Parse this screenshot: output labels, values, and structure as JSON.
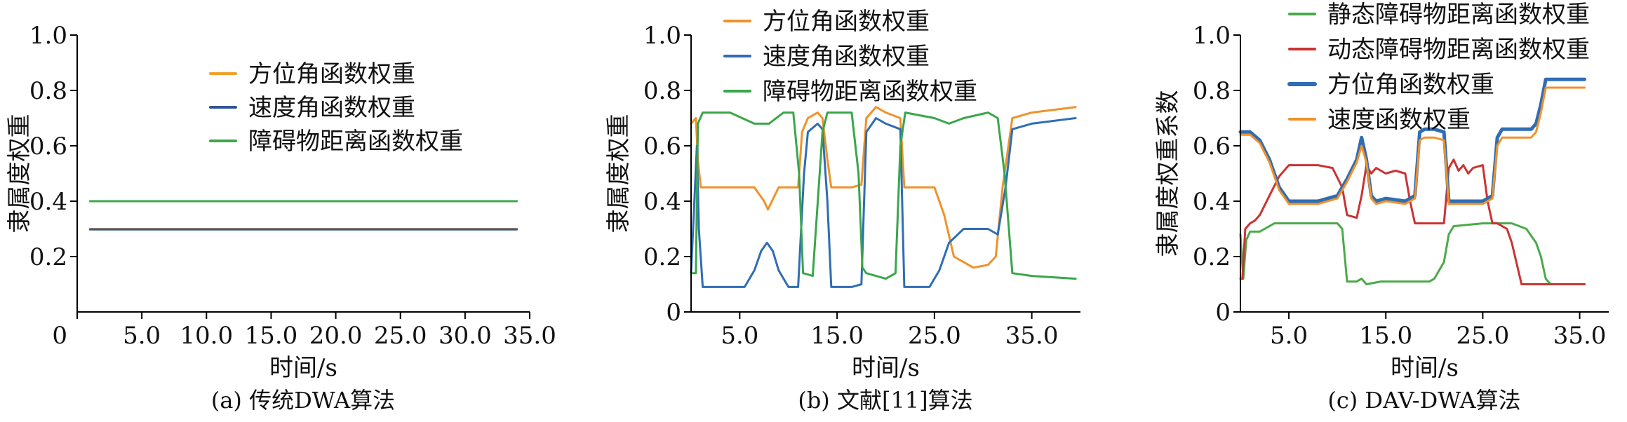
{
  "chart_data": [
    {
      "type": "line",
      "caption": "(a) 传统DWA算法",
      "xlabel": "时间/s",
      "ylabel": "隶属度权重",
      "xlim": [
        0,
        35.0
      ],
      "ylim": [
        0,
        1.0
      ],
      "xticks": [
        0,
        5.0,
        10.0,
        15.0,
        20.0,
        25.0,
        30.0,
        35.0
      ],
      "xtick_labels": [
        "0",
        "5.0",
        "10.0",
        "15.0",
        "20.0",
        "25.0",
        "30.0",
        "35.0"
      ],
      "yticks": [
        0.2,
        0.4,
        0.6,
        0.8,
        1.0
      ],
      "ytick_labels": [
        "0.2",
        "0.4",
        "0.6",
        "0.8",
        "1.0"
      ],
      "legend": "upper-center",
      "series": [
        {
          "name": "方位角函数权重",
          "color": "#f0a030",
          "x": [
            1.0,
            34.0
          ],
          "y": [
            0.3,
            0.3
          ]
        },
        {
          "name": "速度角函数权重",
          "color": "#2f5597",
          "x": [
            1.0,
            34.0
          ],
          "y": [
            0.298,
            0.298
          ]
        },
        {
          "name": "障碍物距离函数权重",
          "color": "#3ea84a",
          "x": [
            1.0,
            34.0
          ],
          "y": [
            0.4,
            0.4
          ]
        }
      ]
    },
    {
      "type": "line",
      "caption": "(b) 文献[11]算法",
      "xlabel": "时间/s",
      "ylabel": "隶属度权重",
      "xlim": [
        0,
        40.0
      ],
      "ylim": [
        0,
        1.0
      ],
      "xticks": [
        5.0,
        15.0,
        25.0,
        35.0
      ],
      "xtick_labels": [
        "5.0",
        "15.0",
        "25.0",
        "35.0"
      ],
      "yticks": [
        0,
        0.2,
        0.4,
        0.6,
        0.8,
        1.0
      ],
      "ytick_labels": [
        "0",
        "0.2",
        "0.4",
        "0.6",
        "0.8",
        "1.0"
      ],
      "legend": "top-center",
      "series": [
        {
          "name": "方位角函数权重",
          "color": "#f0922b",
          "x": [
            0,
            0.5,
            0.7,
            1.0,
            1.5,
            4,
            6.5,
            7.5,
            7.9,
            8.3,
            9.0,
            10.0,
            11.0,
            11.4,
            12.0,
            13.0,
            13.5,
            14.0,
            14.4,
            15.0,
            16.5,
            17.5,
            18.0,
            19.0,
            20.0,
            21.5,
            21.9,
            23.0,
            25.0,
            26.0,
            27.0,
            29.0,
            30.5,
            31.3,
            32.0,
            33.0,
            35.0,
            39.5
          ],
          "y": [
            0.68,
            0.7,
            0.55,
            0.45,
            0.45,
            0.45,
            0.45,
            0.4,
            0.37,
            0.4,
            0.45,
            0.45,
            0.45,
            0.65,
            0.7,
            0.72,
            0.7,
            0.55,
            0.45,
            0.45,
            0.45,
            0.46,
            0.7,
            0.74,
            0.72,
            0.7,
            0.45,
            0.45,
            0.45,
            0.35,
            0.2,
            0.16,
            0.17,
            0.2,
            0.45,
            0.7,
            0.72,
            0.74
          ]
        },
        {
          "name": "速度角函数权重",
          "color": "#2f6db5",
          "x": [
            0,
            0.6,
            0.8,
            1.2,
            4.0,
            5.5,
            6.5,
            7.2,
            7.8,
            8.4,
            9.0,
            10.0,
            11.0,
            11.6,
            12.0,
            13.0,
            13.5,
            14.0,
            14.4,
            16.5,
            17.5,
            18.0,
            19.0,
            20.0,
            21.5,
            21.9,
            24.5,
            25.5,
            26.5,
            28.0,
            30.5,
            31.5,
            32.3,
            33.0,
            35.0,
            39.5
          ],
          "y": [
            0.14,
            0.6,
            0.3,
            0.09,
            0.09,
            0.09,
            0.15,
            0.22,
            0.25,
            0.22,
            0.15,
            0.09,
            0.09,
            0.5,
            0.65,
            0.68,
            0.66,
            0.4,
            0.09,
            0.09,
            0.1,
            0.65,
            0.7,
            0.68,
            0.66,
            0.09,
            0.09,
            0.15,
            0.25,
            0.3,
            0.3,
            0.28,
            0.45,
            0.66,
            0.68,
            0.7
          ]
        },
        {
          "name": "障碍物距离函数权重",
          "color": "#3aa64a",
          "x": [
            0,
            0.5,
            0.7,
            1.2,
            4.0,
            6.5,
            8.0,
            9.5,
            10.5,
            11.1,
            11.5,
            12.5,
            13.5,
            14.0,
            14.4,
            16.5,
            17.2,
            17.6,
            18.0,
            20.0,
            21.0,
            21.5,
            22.0,
            25.0,
            26.5,
            28.0,
            30.5,
            31.5,
            32.2,
            33.0,
            35.0,
            39.5
          ],
          "y": [
            0.14,
            0.14,
            0.68,
            0.72,
            0.72,
            0.68,
            0.68,
            0.72,
            0.72,
            0.5,
            0.14,
            0.13,
            0.65,
            0.72,
            0.72,
            0.72,
            0.5,
            0.16,
            0.14,
            0.12,
            0.14,
            0.6,
            0.72,
            0.7,
            0.68,
            0.7,
            0.72,
            0.7,
            0.5,
            0.14,
            0.13,
            0.12
          ]
        }
      ]
    },
    {
      "type": "line",
      "caption": "(c) DAV-DWA算法",
      "xlabel": "时间/s",
      "ylabel": "隶属度权重系数",
      "xlim": [
        0,
        38.0
      ],
      "ylim": [
        0,
        1.0
      ],
      "xticks": [
        5.0,
        15.0,
        25.0,
        35.0
      ],
      "xtick_labels": [
        "5.0",
        "15.0",
        "25.0",
        "35.0"
      ],
      "yticks": [
        0,
        0.2,
        0.4,
        0.6,
        0.8,
        1.0
      ],
      "ytick_labels": [
        "0",
        "0.2",
        "0.4",
        "0.6",
        "0.8",
        "1.0"
      ],
      "legend": "top-center",
      "series": [
        {
          "name": "静态障碍物距离函数权重",
          "color": "#4aaa4a",
          "x": [
            0,
            0.3,
            0.6,
            1.0,
            2.0,
            2.5,
            3.5,
            5.0,
            8.0,
            10.0,
            10.5,
            11.0,
            12.0,
            12.5,
            13.0,
            14.5,
            16.0,
            18.0,
            19.5,
            20.0,
            21.0,
            21.5,
            22.0,
            25.0,
            27.0,
            28.0,
            29.5,
            30.5,
            31.0,
            31.5,
            32.0,
            35.5
          ],
          "y": [
            0.28,
            0.12,
            0.26,
            0.29,
            0.29,
            0.3,
            0.32,
            0.32,
            0.32,
            0.32,
            0.3,
            0.11,
            0.11,
            0.12,
            0.1,
            0.11,
            0.11,
            0.11,
            0.11,
            0.12,
            0.18,
            0.28,
            0.31,
            0.32,
            0.32,
            0.32,
            0.3,
            0.25,
            0.2,
            0.12,
            0.1,
            0.1
          ]
        },
        {
          "name": "动态障碍物距离函数权重",
          "color": "#cc3333",
          "x": [
            0,
            0.2,
            0.5,
            1.0,
            1.5,
            2.0,
            3.0,
            4.0,
            5.0,
            8.0,
            9.5,
            10.5,
            11.0,
            12.0,
            12.5,
            13.0,
            13.5,
            14.0,
            15.0,
            16.0,
            17.0,
            17.5,
            18.0,
            21.0,
            21.5,
            22.0,
            22.5,
            23.0,
            23.5,
            24.0,
            25.0,
            25.5,
            26.0,
            26.5,
            27.5,
            28.0,
            29.0,
            35.5
          ],
          "y": [
            0.12,
            0.12,
            0.3,
            0.32,
            0.33,
            0.35,
            0.42,
            0.49,
            0.53,
            0.53,
            0.52,
            0.45,
            0.35,
            0.34,
            0.42,
            0.53,
            0.5,
            0.52,
            0.5,
            0.51,
            0.5,
            0.4,
            0.32,
            0.32,
            0.52,
            0.55,
            0.51,
            0.53,
            0.5,
            0.52,
            0.53,
            0.4,
            0.32,
            0.32,
            0.3,
            0.25,
            0.1,
            0.1
          ]
        },
        {
          "name": "方位角函数权重",
          "color": "#2f6db5",
          "x": [
            0,
            1.0,
            2.0,
            3.0,
            4.0,
            5.0,
            8.0,
            10.0,
            11.0,
            12.0,
            12.5,
            13.0,
            13.5,
            14.0,
            15.0,
            17.0,
            18.0,
            18.5,
            19.0,
            20.0,
            21.0,
            21.5,
            22.0,
            25.0,
            26.0,
            26.5,
            27.0,
            29.0,
            30.0,
            30.5,
            31.0,
            31.5,
            35.5
          ],
          "y": [
            0.65,
            0.65,
            0.62,
            0.55,
            0.45,
            0.4,
            0.4,
            0.42,
            0.48,
            0.55,
            0.63,
            0.55,
            0.42,
            0.4,
            0.41,
            0.4,
            0.42,
            0.65,
            0.66,
            0.66,
            0.65,
            0.4,
            0.4,
            0.4,
            0.42,
            0.63,
            0.66,
            0.66,
            0.66,
            0.68,
            0.75,
            0.84,
            0.84
          ]
        },
        {
          "name": "速度函数权重",
          "color": "#f0922b",
          "x": [
            0,
            1.0,
            2.0,
            3.0,
            4.0,
            5.0,
            8.0,
            10.0,
            11.0,
            12.0,
            12.5,
            13.0,
            13.5,
            14.0,
            15.0,
            17.0,
            18.0,
            18.5,
            19.0,
            20.0,
            21.0,
            21.5,
            22.0,
            25.0,
            26.0,
            26.5,
            27.0,
            29.0,
            30.0,
            30.5,
            31.0,
            31.5,
            35.5
          ],
          "y": [
            0.64,
            0.64,
            0.61,
            0.54,
            0.44,
            0.39,
            0.39,
            0.41,
            0.47,
            0.54,
            0.6,
            0.54,
            0.41,
            0.39,
            0.4,
            0.39,
            0.41,
            0.62,
            0.63,
            0.63,
            0.62,
            0.39,
            0.39,
            0.39,
            0.41,
            0.6,
            0.63,
            0.63,
            0.63,
            0.65,
            0.72,
            0.81,
            0.81
          ]
        }
      ]
    }
  ]
}
